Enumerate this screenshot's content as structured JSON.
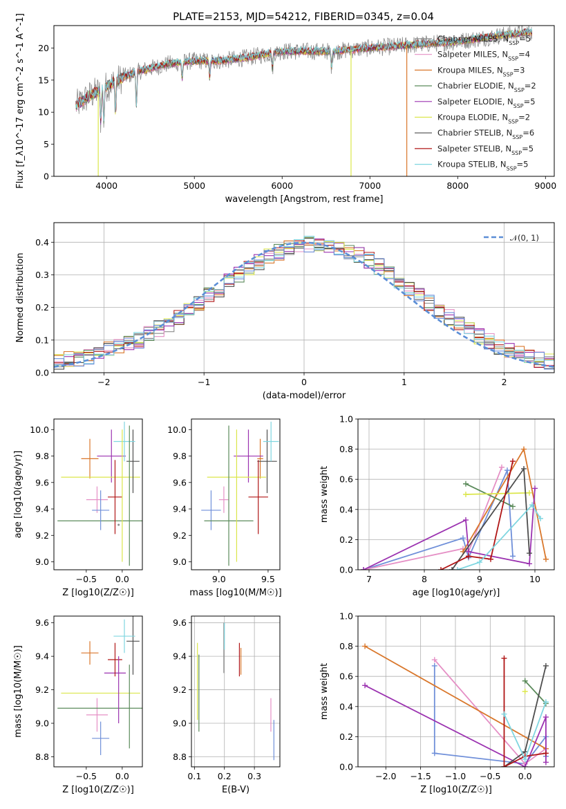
{
  "colors": {
    "Chabrier MILES": "#8c8c8c",
    "Salpeter MILES": "#e58fc5",
    "Kroupa MILES": "#d9772b",
    "Chabrier ELODIE": "#5a8a5a",
    "Salpeter ELODIE": "#9b32b0",
    "Kroupa ELODIE": "#dbe64a",
    "Chabrier STELIB": "#4d4d4d",
    "Salpeter STELIB": "#b01515",
    "Kroupa STELIB": "#7fd6e0",
    "hist_blue": "#6f8fd9",
    "normal_curve": "#5b8ed6"
  },
  "chart_data": [
    {
      "id": "spectrum",
      "type": "line",
      "title": "PLATE=2153, MJD=54212, FIBERID=0345, z=0.04",
      "xlabel": "wavelength [Angstrom, rest frame]",
      "ylabel": "Flux [f_λ10^-17 erg cm^-2 s^-1 A^-1]",
      "xlim": [
        3400,
        9100
      ],
      "ylim": [
        0,
        23.5
      ],
      "xticks": [
        4000,
        5000,
        6000,
        7000,
        8000,
        9000
      ],
      "yticks": [
        0,
        5,
        10,
        15,
        20
      ],
      "grid": false,
      "legend_position": "right",
      "continuum": {
        "x": [
          3650,
          3800,
          4000,
          4200,
          4400,
          4700,
          5000,
          5300,
          5600,
          6000,
          6300,
          6600,
          7000,
          7500,
          8000,
          8500,
          8850
        ],
        "y": [
          11,
          12.5,
          14,
          15.5,
          16.5,
          17.5,
          18,
          18,
          18.5,
          19.5,
          19.5,
          19.5,
          20,
          20.5,
          21,
          22,
          22.5
        ]
      },
      "absorption_features": [
        3934,
        3969,
        4102,
        4340,
        4861,
        5175,
        5890,
        6563
      ],
      "artifacts": [
        {
          "x": 3905,
          "series": "Kroupa ELODIE"
        },
        {
          "x": 6785,
          "series": "Kroupa ELODIE"
        },
        {
          "x": 7420,
          "series": "Kroupa MILES"
        }
      ],
      "series": [
        {
          "name": "Chabrier MILES",
          "nssp": "5"
        },
        {
          "name": "Salpeter MILES",
          "nssp": "4"
        },
        {
          "name": "Kroupa MILES",
          "nssp": "3"
        },
        {
          "name": "Chabrier ELODIE",
          "nssp": "2"
        },
        {
          "name": "Salpeter ELODIE",
          "nssp": "5"
        },
        {
          "name": "Kroupa ELODIE",
          "nssp": "2"
        },
        {
          "name": "Chabrier STELIB",
          "nssp": "6"
        },
        {
          "name": "Salpeter STELIB",
          "nssp": "5"
        },
        {
          "name": "Kroupa STELIB",
          "nssp": "5"
        }
      ]
    },
    {
      "id": "residuals",
      "type": "histogram",
      "xlabel": "(data-model)/error",
      "ylabel": "Normed distribution",
      "xlim": [
        -2.5,
        2.5
      ],
      "ylim": [
        0,
        0.46
      ],
      "xticks": [
        -2,
        -1,
        0,
        1,
        2
      ],
      "yticks": [
        0.0,
        0.1,
        0.2,
        0.3,
        0.4
      ],
      "grid": true,
      "legend": "𝒩(0, 1)",
      "legend_position": "top-right",
      "bin_width": 0.1,
      "bin_start": -2.5,
      "mean_profile": [
        0.035,
        0.04,
        0.045,
        0.05,
        0.06,
        0.07,
        0.08,
        0.09,
        0.1,
        0.12,
        0.135,
        0.15,
        0.17,
        0.19,
        0.21,
        0.235,
        0.255,
        0.28,
        0.3,
        0.32,
        0.34,
        0.355,
        0.37,
        0.38,
        0.39,
        0.395,
        0.395,
        0.39,
        0.385,
        0.37,
        0.36,
        0.345,
        0.325,
        0.305,
        0.28,
        0.26,
        0.235,
        0.215,
        0.19,
        0.17,
        0.15,
        0.13,
        0.11,
        0.095,
        0.08,
        0.07,
        0.06,
        0.05,
        0.04,
        0.035
      ]
    },
    {
      "id": "age_vs_Z",
      "type": "scatter",
      "xlabel": "Z [log10(Z/Z☉)]",
      "ylabel": "age  [log10(age/yr)]",
      "xlim": [
        -0.95,
        0.28
      ],
      "ylim": [
        8.94,
        10.08
      ],
      "xticks": [
        -0.5,
        0.0
      ],
      "yticks": [
        9.0,
        9.2,
        9.4,
        9.6,
        9.8,
        10.0
      ],
      "grid": false,
      "points": [
        {
          "series": "Chabrier MILES",
          "x": -0.05,
          "y": 9.28,
          "xerr": 0.0,
          "yerr": 0.0
        },
        {
          "series": "Salpeter MILES",
          "x": -0.35,
          "y": 9.47,
          "xerr": 0.15,
          "yerr": 0.1
        },
        {
          "series": "Kroupa MILES",
          "x": -0.45,
          "y": 9.78,
          "xerr": 0.12,
          "yerr": 0.15
        },
        {
          "series": "Chabrier ELODIE",
          "x": -0.3,
          "y": 9.31,
          "xerr": 0.6,
          "yerr": 0.0
        },
        {
          "series": "Salpeter ELODIE",
          "x": -0.15,
          "y": 9.8,
          "xerr": 0.2,
          "yerr": 0.2
        },
        {
          "series": "Kroupa ELODIE",
          "x": -0.3,
          "y": 9.64,
          "xerr": 0.55,
          "yerr": 0.0
        },
        {
          "series": "Chabrier STELIB",
          "x": 0.15,
          "y": 9.76,
          "xerr": 0.09,
          "yerr": 0.24
        },
        {
          "series": "Salpeter STELIB",
          "x": -0.1,
          "y": 9.49,
          "xerr": 0.1,
          "yerr": 0.28
        },
        {
          "series": "Kroupa STELIB",
          "x": 0.03,
          "y": 9.91,
          "xerr": 0.15,
          "yerr": 0.15
        },
        {
          "series": "Chabrier ELODIE",
          "x": 0.1,
          "y": 9.5,
          "xerr": 0.0,
          "yerr": 0.53
        },
        {
          "series": "Kroupa ELODIE",
          "x": 0.0,
          "y": 9.5,
          "xerr": 0.0,
          "yerr": 0.5
        },
        {
          "series": "hist_blue",
          "x": -0.3,
          "y": 9.39,
          "xerr": 0.12,
          "yerr": 0.15
        }
      ]
    },
    {
      "id": "age_vs_mass",
      "type": "scatter",
      "xlabel": "mass [log10(M/M☉)]",
      "ylabel": "",
      "xlim": [
        8.72,
        9.62
      ],
      "ylim": [
        8.94,
        10.08
      ],
      "xticks": [
        9.0,
        9.5
      ],
      "yticks": [
        9.0,
        9.2,
        9.4,
        9.6,
        9.8,
        10.0
      ],
      "grid": false,
      "points": [
        {
          "series": "hist_blue",
          "x": 8.92,
          "y": 9.39,
          "xerr": 0.1,
          "yerr": 0.15
        },
        {
          "series": "Salpeter MILES",
          "x": 9.05,
          "y": 9.47,
          "xerr": 0.05,
          "yerr": 0.1
        },
        {
          "series": "Kroupa MILES",
          "x": 9.42,
          "y": 9.78,
          "xerr": 0.03,
          "yerr": 0.15
        },
        {
          "series": "Chabrier ELODIE",
          "x": 9.1,
          "y": 9.31,
          "xerr": 0.25,
          "yerr": 0.0
        },
        {
          "series": "Salpeter ELODIE",
          "x": 9.3,
          "y": 9.8,
          "xerr": 0.15,
          "yerr": 0.2
        },
        {
          "series": "Kroupa ELODIE",
          "x": 9.18,
          "y": 9.64,
          "xerr": 0.3,
          "yerr": 0.0
        },
        {
          "series": "Chabrier STELIB",
          "x": 9.49,
          "y": 9.76,
          "xerr": 0.1,
          "yerr": 0.24
        },
        {
          "series": "Salpeter STELIB",
          "x": 9.4,
          "y": 9.49,
          "xerr": 0.1,
          "yerr": 0.28
        },
        {
          "series": "Kroupa STELIB",
          "x": 9.53,
          "y": 9.91,
          "xerr": 0.08,
          "yerr": 0.15
        },
        {
          "series": "Chabrier ELODIE",
          "x": 9.1,
          "y": 9.5,
          "xerr": 0.0,
          "yerr": 0.53
        },
        {
          "series": "Kroupa ELODIE",
          "x": 9.18,
          "y": 9.5,
          "xerr": 0.0,
          "yerr": 0.5
        }
      ]
    },
    {
      "id": "weight_vs_age",
      "type": "line",
      "xlabel": "age  [log10(age/yr)]",
      "ylabel": "mass weight",
      "xlim": [
        6.8,
        10.35
      ],
      "ylim": [
        0,
        1.0
      ],
      "xticks": [
        7,
        8,
        9,
        10
      ],
      "yticks": [
        0.0,
        0.2,
        0.4,
        0.6,
        0.8,
        1.0
      ],
      "grid": true,
      "series": [
        {
          "name": "hist_blue",
          "x": [
            6.9,
            8.7,
            8.8,
            9.5,
            9.6
          ],
          "y": [
            0.0,
            0.21,
            0.08,
            0.66,
            0.09
          ]
        },
        {
          "name": "Salpeter MILES",
          "x": [
            6.9,
            8.7,
            8.8,
            9.4
          ],
          "y": [
            0.0,
            0.14,
            0.12,
            0.68
          ]
        },
        {
          "name": "Kroupa MILES",
          "x": [
            8.7,
            9.8,
            10.2
          ],
          "y": [
            0.12,
            0.8,
            0.07
          ]
        },
        {
          "name": "Chabrier ELODIE",
          "x": [
            8.75,
            9.6
          ],
          "y": [
            0.57,
            0.42
          ]
        },
        {
          "name": "Salpeter ELODIE",
          "x": [
            6.9,
            8.75,
            8.8,
            9.9,
            10.0
          ],
          "y": [
            0.0,
            0.33,
            0.12,
            0.04,
            0.54
          ]
        },
        {
          "name": "Kroupa ELODIE",
          "x": [
            8.75,
            9.9
          ],
          "y": [
            0.5,
            0.51
          ]
        },
        {
          "name": "Chabrier STELIB",
          "x": [
            8.5,
            9.8,
            9.9
          ],
          "y": [
            0.0,
            0.67,
            0.11
          ]
        },
        {
          "name": "Salpeter STELIB",
          "x": [
            8.3,
            8.8,
            9.2,
            9.6
          ],
          "y": [
            0.0,
            0.09,
            0.07,
            0.72
          ]
        },
        {
          "name": "Kroupa STELIB",
          "x": [
            8.6,
            9.0,
            9.95,
            10.1
          ],
          "y": [
            0.0,
            0.05,
            0.43,
            0.34
          ]
        }
      ]
    },
    {
      "id": "mass_vs_Z",
      "type": "scatter",
      "xlabel": "Z [log10(Z/Z☉)]",
      "ylabel": "mass [log10(M/M☉)]",
      "xlim": [
        -0.95,
        0.28
      ],
      "ylim": [
        8.74,
        9.64
      ],
      "xticks": [
        -0.5,
        0.0
      ],
      "yticks": [
        8.8,
        9.0,
        9.2,
        9.4,
        9.6
      ],
      "grid": false,
      "points": [
        {
          "series": "hist_blue",
          "x": -0.3,
          "y": 8.91,
          "xerr": 0.12,
          "yerr": 0.1
        },
        {
          "series": "Salpeter MILES",
          "x": -0.35,
          "y": 9.05,
          "xerr": 0.15,
          "yerr": 0.1
        },
        {
          "series": "Kroupa MILES",
          "x": -0.45,
          "y": 9.42,
          "xerr": 0.12,
          "yerr": 0.07
        },
        {
          "series": "Chabrier ELODIE",
          "x": -0.3,
          "y": 9.09,
          "xerr": 0.6,
          "yerr": 0.0
        },
        {
          "series": "Salpeter ELODIE",
          "x": -0.1,
          "y": 9.3,
          "xerr": 0.15,
          "yerr": 0.0
        },
        {
          "series": "Kroupa ELODIE",
          "x": -0.3,
          "y": 9.18,
          "xerr": 0.55,
          "yerr": 0.0
        },
        {
          "series": "Chabrier STELIB",
          "x": 0.15,
          "y": 9.49,
          "xerr": 0.09,
          "yerr": 0.2
        },
        {
          "series": "Salpeter STELIB",
          "x": -0.1,
          "y": 9.38,
          "xerr": 0.1,
          "yerr": 0.1
        },
        {
          "series": "Kroupa STELIB",
          "x": 0.03,
          "y": 9.52,
          "xerr": 0.15,
          "yerr": 0.1
        },
        {
          "series": "Chabrier ELODIE",
          "x": 0.1,
          "y": 9.1,
          "xerr": 0.0,
          "yerr": 0.25
        },
        {
          "series": "Salpeter ELODIE",
          "x": -0.05,
          "y": 9.2,
          "xerr": 0.0,
          "yerr": 0.2
        }
      ]
    },
    {
      "id": "mass_vs_ebv",
      "type": "scatter",
      "xlabel": "E(B-V)",
      "ylabel": "",
      "xlim": [
        0.09,
        0.385
      ],
      "ylim": [
        8.74,
        9.64
      ],
      "xticks": [
        0.1,
        0.2,
        0.3
      ],
      "yticks": [
        8.8,
        9.0,
        9.2,
        9.4,
        9.6
      ],
      "grid": true,
      "points": [
        {
          "series": "Kroupa ELODIE",
          "x": 0.11,
          "y": 9.25,
          "xerr": 0.0,
          "yerr": 0.23
        },
        {
          "series": "Chabrier ELODIE",
          "x": 0.115,
          "y": 9.18,
          "xerr": 0.0,
          "yerr": 0.23
        },
        {
          "series": "Chabrier MILES",
          "x": 0.198,
          "y": 9.45,
          "xerr": 0.0,
          "yerr": 0.15
        },
        {
          "series": "Kroupa STELIB",
          "x": 0.2,
          "y": 9.52,
          "xerr": 0.0,
          "yerr": 0.08
        },
        {
          "series": "Salpeter STELIB",
          "x": 0.25,
          "y": 9.38,
          "xerr": 0.0,
          "yerr": 0.1
        },
        {
          "series": "Kroupa MILES",
          "x": 0.255,
          "y": 9.37,
          "xerr": 0.0,
          "yerr": 0.08
        },
        {
          "series": "Salpeter MILES",
          "x": 0.355,
          "y": 9.05,
          "xerr": 0.0,
          "yerr": 0.1
        },
        {
          "series": "hist_blue",
          "x": 0.365,
          "y": 8.9,
          "xerr": 0.0,
          "yerr": 0.12
        }
      ]
    },
    {
      "id": "weight_vs_Z",
      "type": "line",
      "xlabel": "Z [log10(Z/Z☉)]",
      "ylabel": "mass weight",
      "xlim": [
        -2.4,
        0.42
      ],
      "ylim": [
        0,
        1.0
      ],
      "xticks": [
        -2.0,
        -1.5,
        -1.0,
        -0.5,
        0.0
      ],
      "yticks": [
        0.0,
        0.2,
        0.4,
        0.6,
        0.8,
        1.0
      ],
      "grid": true,
      "series": [
        {
          "name": "hist_blue",
          "x": [
            -1.3,
            -1.3,
            0.0,
            0.3,
            0.3
          ],
          "y": [
            0.67,
            0.09,
            0.02,
            0.2,
            0.07
          ]
        },
        {
          "name": "Salpeter MILES",
          "x": [
            -1.3,
            0.0,
            0.3
          ],
          "y": [
            0.71,
            0.02,
            0.12
          ]
        },
        {
          "name": "Kroupa MILES",
          "x": [
            -2.3,
            0.3
          ],
          "y": [
            0.8,
            0.12
          ]
        },
        {
          "name": "Chabrier ELODIE",
          "x": [
            0.0,
            0.3
          ],
          "y": [
            0.57,
            0.42
          ]
        },
        {
          "name": "Salpeter ELODIE",
          "x": [
            -2.3,
            0.0,
            0.3,
            0.3
          ],
          "y": [
            0.54,
            0.0,
            0.33,
            0.03
          ]
        },
        {
          "name": "Kroupa ELODIE",
          "x": [
            0.0
          ],
          "y": [
            0.5
          ]
        },
        {
          "name": "Chabrier STELIB",
          "x": [
            -0.3,
            0.0,
            0.3
          ],
          "y": [
            0.0,
            0.1,
            0.67
          ]
        },
        {
          "name": "Salpeter STELIB",
          "x": [
            -0.3,
            -0.3,
            0.0,
            0.3
          ],
          "y": [
            0.72,
            0.0,
            0.07,
            0.09
          ]
        },
        {
          "name": "Kroupa STELIB",
          "x": [
            -0.3,
            0.0,
            0.3
          ],
          "y": [
            0.35,
            0.05,
            0.43
          ]
        }
      ]
    }
  ]
}
